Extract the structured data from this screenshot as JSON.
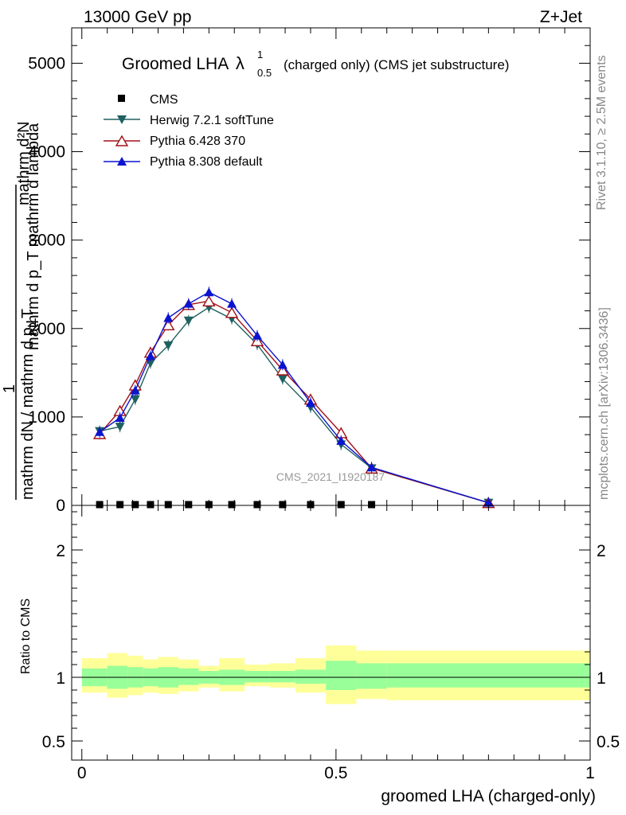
{
  "header": {
    "energy": "13000 GeV pp",
    "process": "Z+Jet",
    "side_rivet": "Rivet 3.1.10, ≥ 2.5M events",
    "side_mcplots": "mcplots.cern.ch [arXiv:1306.3436]",
    "watermark": "CMS_2021_I1920187"
  },
  "chart_data": [
    {
      "type": "line",
      "title": "Groomed LHA",
      "title_symbol": "λ",
      "title_sup": "1",
      "title_sub": "0.5",
      "subtitle": "(charged only) (CMS jet substructure)",
      "ylabel_top": "mathrm d²N",
      "ylabel_mid": "mathrm d p_T mathrm d lambda",
      "ylabel_prefix": "1",
      "ylabel_bot": "mathrm dN / mathrm d p_T",
      "ylim": [
        0,
        5400
      ],
      "yticks": [
        0,
        1000,
        2000,
        3000,
        4000,
        5000
      ],
      "ytick_labels": [
        "0",
        "1000",
        "2000",
        "3000",
        "4000",
        "5000"
      ],
      "xlim": [
        -0.02,
        1.0
      ],
      "x": [
        0.035,
        0.075,
        0.105,
        0.135,
        0.17,
        0.21,
        0.25,
        0.295,
        0.345,
        0.395,
        0.45,
        0.51,
        0.57,
        0.8
      ],
      "cms_values": [
        0,
        0,
        0,
        0,
        0,
        0,
        0,
        0,
        0,
        0,
        0,
        0,
        0,
        null
      ],
      "series": [
        {
          "name": "CMS",
          "color": "#000000",
          "marker": "square"
        },
        {
          "name": "Herwig 7.2.1 softTune",
          "color": "#1f6060",
          "marker": "triangle-down",
          "values": [
            840,
            890,
            1200,
            1610,
            1810,
            2090,
            2240,
            2110,
            1820,
            1430,
            1110,
            690,
            420,
            30
          ]
        },
        {
          "name": "Pythia 6.428 370",
          "color": "#a01018",
          "marker": "triangle-up-open",
          "values": [
            810,
            1070,
            1360,
            1730,
            2040,
            2270,
            2310,
            2180,
            1860,
            1530,
            1200,
            820,
            420,
            30
          ]
        },
        {
          "name": "Pythia 8.308 default",
          "color": "#0a14d0",
          "marker": "triangle-up",
          "values": [
            830,
            990,
            1300,
            1690,
            2120,
            2280,
            2410,
            2280,
            1920,
            1590,
            1160,
            730,
            430,
            30
          ]
        }
      ]
    },
    {
      "type": "area",
      "ylabel": "Ratio to CMS",
      "xlabel": "groomed LHA (charged-only)",
      "xlim": [
        -0.02,
        1.0
      ],
      "ylim": [
        0.35,
        2.35
      ],
      "yticks": [
        0.5,
        1,
        2
      ],
      "ytick_labels": [
        "0.5",
        "1",
        "2"
      ],
      "xticks": [
        0,
        0.5,
        1
      ],
      "xtick_labels": [
        "0",
        "0.5",
        "1"
      ],
      "bin_edges": [
        0.0,
        0.05,
        0.09,
        0.12,
        0.15,
        0.19,
        0.23,
        0.27,
        0.32,
        0.37,
        0.42,
        0.48,
        0.54,
        0.6,
        1.0
      ],
      "band_inner": [
        [
          0.93,
          1.07
        ],
        [
          0.91,
          1.09
        ],
        [
          0.92,
          1.08
        ],
        [
          0.93,
          1.07
        ],
        [
          0.92,
          1.08
        ],
        [
          0.94,
          1.07
        ],
        [
          0.95,
          1.05
        ],
        [
          0.94,
          1.06
        ],
        [
          0.96,
          1.05
        ],
        [
          0.96,
          1.05
        ],
        [
          0.95,
          1.06
        ],
        [
          0.9,
          1.13
        ],
        [
          0.91,
          1.11
        ],
        [
          0.92,
          1.11
        ]
      ],
      "band_outer": [
        [
          0.88,
          1.15
        ],
        [
          0.84,
          1.19
        ],
        [
          0.86,
          1.17
        ],
        [
          0.88,
          1.14
        ],
        [
          0.87,
          1.16
        ],
        [
          0.89,
          1.14
        ],
        [
          0.92,
          1.09
        ],
        [
          0.89,
          1.15
        ],
        [
          0.93,
          1.1
        ],
        [
          0.92,
          1.11
        ],
        [
          0.88,
          1.15
        ],
        [
          0.79,
          1.25
        ],
        [
          0.83,
          1.21
        ],
        [
          0.82,
          1.21
        ]
      ],
      "colors": {
        "inner": "#99ff99",
        "outer": "#ffff99"
      }
    }
  ]
}
